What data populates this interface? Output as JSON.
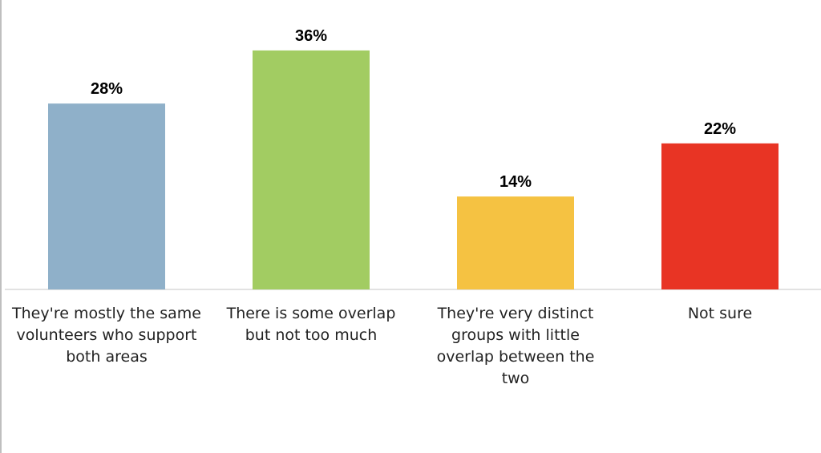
{
  "chart_data": {
    "type": "bar",
    "title": "",
    "xlabel": "",
    "ylabel": "",
    "ylim": [
      0,
      40
    ],
    "grid": false,
    "legend": "none",
    "categories": [
      "They're mostly the same volunteers who support both areas",
      "There is some overlap but not too much",
      "They're very distinct groups with little overlap between the two",
      "Not sure"
    ],
    "values": [
      28,
      36,
      14,
      22
    ],
    "data_labels": [
      "28%",
      "36%",
      "14%",
      "22%"
    ],
    "colors": [
      "#8fb0c9",
      "#a2cc62",
      "#f5c242",
      "#e83424"
    ]
  }
}
